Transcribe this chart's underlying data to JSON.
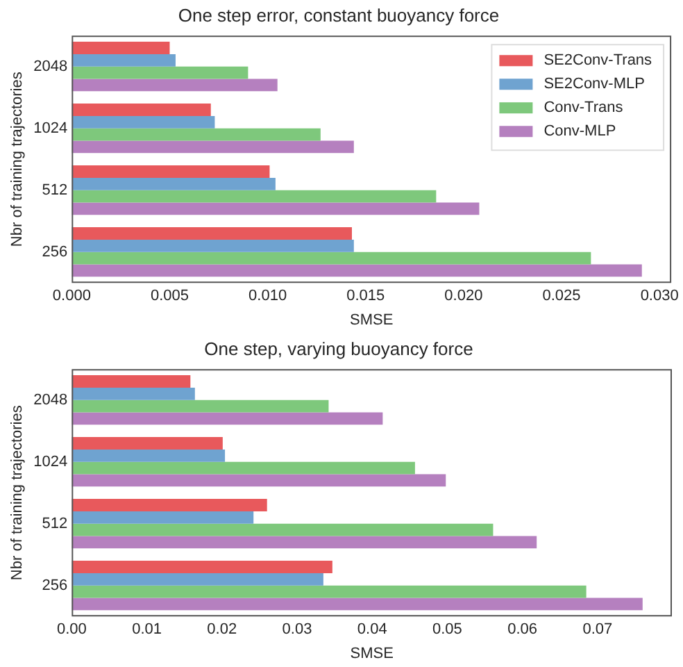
{
  "chart_data": [
    {
      "type": "bar",
      "orientation": "horizontal",
      "title": "One step error, constant buoyancy force",
      "xlabel": "SMSE",
      "ylabel": "Nbr of training trajectories",
      "categories": [
        "2048",
        "1024",
        "512",
        "256"
      ],
      "xlim": [
        0,
        0.0306
      ],
      "xticks": [
        {
          "value": 0,
          "label": "0.000"
        },
        {
          "value": 0.005,
          "label": "0.005"
        },
        {
          "value": 0.01,
          "label": "0.010"
        },
        {
          "value": 0.015,
          "label": "0.015"
        },
        {
          "value": 0.02,
          "label": "0.020"
        },
        {
          "value": 0.025,
          "label": "0.025"
        },
        {
          "value": 0.03,
          "label": "0.030"
        }
      ],
      "grid": false,
      "legend": "top right",
      "series": [
        {
          "name": "SE2Conv-Trans",
          "color": "#e8595c",
          "values": [
            0.005,
            0.0071,
            0.0101,
            0.0143
          ]
        },
        {
          "name": "SE2Conv-MLP",
          "color": "#6fa3d0",
          "values": [
            0.0053,
            0.0073,
            0.0104,
            0.0144
          ]
        },
        {
          "name": "Conv-Trans",
          "color": "#7ec87c",
          "values": [
            0.009,
            0.0127,
            0.0186,
            0.0265
          ]
        },
        {
          "name": "Conv-MLP",
          "color": "#b580bf",
          "values": [
            0.0105,
            0.0144,
            0.0208,
            0.0291
          ]
        }
      ]
    },
    {
      "type": "bar",
      "orientation": "horizontal",
      "title": "One step, varying buoyancy force",
      "xlabel": "SMSE",
      "ylabel": "Nbr of training trajectories",
      "categories": [
        "2048",
        "1024",
        "512",
        "256"
      ],
      "xlim": [
        0,
        0.0799
      ],
      "xticks": [
        {
          "value": 0,
          "label": "0.00"
        },
        {
          "value": 0.01,
          "label": "0.01"
        },
        {
          "value": 0.02,
          "label": "0.02"
        },
        {
          "value": 0.03,
          "label": "0.03"
        },
        {
          "value": 0.04,
          "label": "0.04"
        },
        {
          "value": 0.05,
          "label": "0.05"
        },
        {
          "value": 0.06,
          "label": "0.06"
        },
        {
          "value": 0.07,
          "label": "0.07"
        }
      ],
      "grid": false,
      "series": [
        {
          "color": "#e8595c",
          "values": [
            0.0158,
            0.0201,
            0.026,
            0.0347
          ]
        },
        {
          "color": "#6fa3d0",
          "values": [
            0.0164,
            0.0204,
            0.0242,
            0.0335
          ]
        },
        {
          "color": "#7ec87c",
          "values": [
            0.0342,
            0.0457,
            0.0561,
            0.0685
          ]
        },
        {
          "color": "#b580bf",
          "values": [
            0.0414,
            0.0498,
            0.0619,
            0.076
          ]
        }
      ]
    }
  ]
}
